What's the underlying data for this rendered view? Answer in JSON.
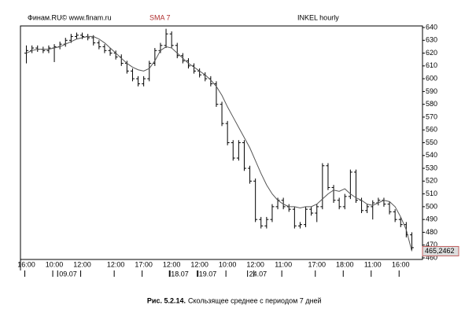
{
  "chart_data": {
    "type": "ohlc",
    "source": "Финам.RU© www.finam.ru",
    "indicator": "SMA 7",
    "title": "INKEL hourly",
    "caption_label": "Рис. 5.2.14.",
    "caption": "Скользящее среднее с периодом 7 дней",
    "categories": [
      "16:00",
      null,
      null,
      null,
      null,
      "10:00",
      null,
      null,
      null,
      null,
      "12:00",
      null,
      null,
      null,
      null,
      null,
      "12:00",
      null,
      null,
      null,
      null,
      "17:00",
      null,
      null,
      null,
      null,
      "12:00",
      null,
      null,
      null,
      null,
      "12:00",
      null,
      null,
      null,
      null,
      "10:00",
      null,
      null,
      null,
      null,
      "12:00",
      null,
      null,
      null,
      null,
      "11:00",
      null,
      null,
      null,
      null,
      null,
      "17:00",
      null,
      null,
      null,
      null,
      "18:00",
      null,
      null,
      null,
      null,
      "11:00",
      null,
      null,
      null,
      null,
      "16:00",
      null,
      null
    ],
    "date_labels": [
      null,
      null,
      null,
      null,
      null,
      null,
      null,
      "09.07",
      null,
      null,
      null,
      null,
      null,
      null,
      null,
      null,
      null,
      null,
      null,
      null,
      null,
      null,
      null,
      null,
      null,
      null,
      null,
      "18.07",
      null,
      null,
      null,
      null,
      "19.07",
      null,
      null,
      null,
      null,
      null,
      null,
      null,
      null,
      "24.07",
      null,
      null,
      null,
      null,
      null,
      null,
      null,
      null,
      null,
      null,
      null,
      null,
      null,
      null,
      null,
      null,
      null,
      null,
      null,
      null,
      null,
      null,
      null,
      null,
      null,
      null,
      null,
      null
    ],
    "open": [
      620,
      622,
      624,
      623,
      622,
      624,
      625,
      627,
      630,
      633,
      634,
      633,
      632,
      628,
      625,
      622,
      620,
      617,
      612,
      606,
      600,
      596,
      600,
      612,
      622,
      626,
      635,
      626,
      618,
      614,
      610,
      606,
      603,
      600,
      596,
      580,
      565,
      550,
      538,
      550,
      530,
      520,
      490,
      485,
      490,
      500,
      505,
      500,
      498,
      485,
      486,
      498,
      495,
      500,
      532,
      515,
      505,
      500,
      508,
      527,
      505,
      497,
      500,
      503,
      505,
      502,
      496,
      490,
      486,
      478
    ],
    "high": [
      626,
      626,
      626,
      625,
      626,
      627,
      629,
      632,
      635,
      636,
      636,
      635,
      634,
      630,
      627,
      624,
      622,
      619,
      614,
      608,
      602,
      602,
      614,
      624,
      628,
      639,
      637,
      628,
      620,
      616,
      612,
      608,
      605,
      602,
      598,
      582,
      567,
      552,
      552,
      552,
      532,
      522,
      492,
      492,
      502,
      507,
      507,
      502,
      500,
      488,
      500,
      500,
      502,
      534,
      534,
      517,
      507,
      510,
      529,
      529,
      507,
      502,
      505,
      507,
      507,
      504,
      498,
      492,
      488,
      480
    ],
    "low": [
      612,
      620,
      621,
      620,
      620,
      613,
      623,
      625,
      628,
      631,
      631,
      630,
      626,
      623,
      620,
      618,
      615,
      610,
      604,
      598,
      594,
      594,
      598,
      610,
      620,
      624,
      624,
      616,
      612,
      608,
      604,
      601,
      598,
      594,
      578,
      563,
      548,
      536,
      536,
      528,
      518,
      488,
      483,
      483,
      488,
      498,
      498,
      496,
      483,
      483,
      484,
      493,
      488,
      498,
      513,
      503,
      498,
      498,
      506,
      503,
      495,
      495,
      490,
      501,
      500,
      494,
      488,
      484,
      476,
      466
    ],
    "close": [
      622,
      624,
      623,
      622,
      624,
      625,
      627,
      630,
      633,
      634,
      633,
      632,
      628,
      625,
      622,
      620,
      617,
      612,
      606,
      600,
      596,
      600,
      612,
      622,
      626,
      635,
      626,
      618,
      614,
      610,
      606,
      603,
      600,
      596,
      580,
      565,
      550,
      538,
      550,
      530,
      520,
      490,
      485,
      490,
      500,
      505,
      500,
      498,
      485,
      486,
      498,
      495,
      500,
      532,
      515,
      505,
      500,
      508,
      527,
      505,
      497,
      500,
      503,
      505,
      502,
      496,
      490,
      486,
      478,
      468
    ],
    "bar_color": "#000000",
    "sma": {
      "name": "SMA 7",
      "color": "#555555",
      "values": [
        620,
        622,
        623,
        623,
        623,
        624,
        625,
        627,
        629,
        631,
        632,
        633,
        633,
        631,
        628,
        624,
        620,
        616,
        612,
        609,
        607,
        606,
        608,
        614,
        622,
        625,
        624,
        620,
        616,
        612,
        609,
        606,
        603,
        599,
        594,
        587,
        578,
        570,
        562,
        554,
        546,
        536,
        526,
        517,
        510,
        505,
        502,
        500,
        500,
        499,
        500,
        500,
        502,
        506,
        510,
        513,
        512,
        514,
        510,
        507,
        505,
        502,
        501,
        503,
        505,
        504,
        500,
        492,
        482,
        465.2462
      ]
    },
    "last_label": {
      "value": 465.2462,
      "label": "465,2462"
    },
    "ylim": [
      460,
      640
    ],
    "yticks": [
      460,
      470,
      480,
      490,
      500,
      510,
      520,
      530,
      540,
      550,
      560,
      570,
      580,
      590,
      600,
      610,
      620,
      630,
      640
    ]
  }
}
